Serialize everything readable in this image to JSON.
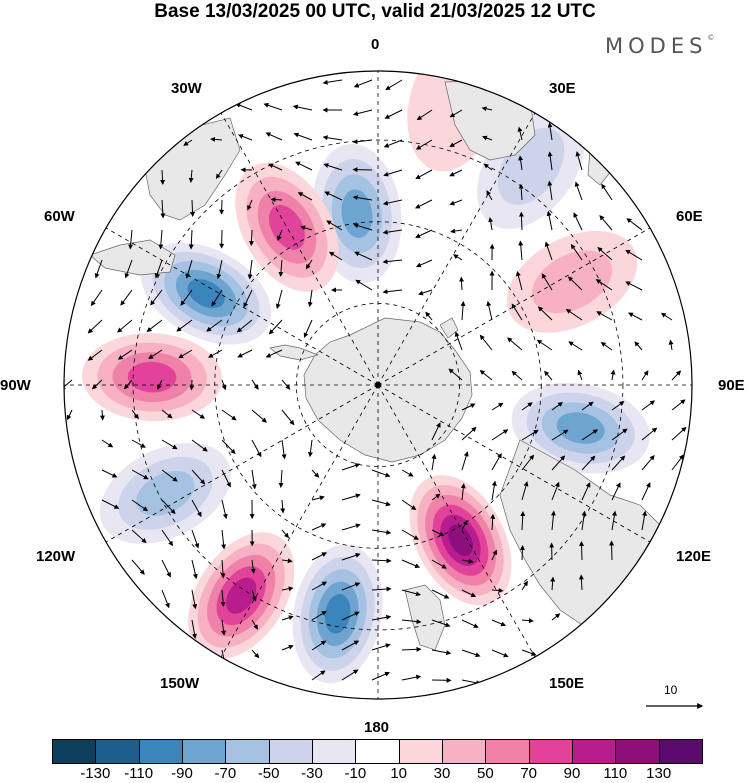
{
  "title": "Base 13/03/2025 00 UTC, valid 21/03/2025 12 UTC",
  "brand": "MODES",
  "brand_mark": "©",
  "map": {
    "projection": "south polar stereographic",
    "longitude_labels": {
      "top": "0",
      "bottom": "180",
      "left": "90W",
      "right": "90E",
      "upper_left_30": "30W",
      "upper_left_60": "60W",
      "lower_left_120": "120W",
      "lower_left_150": "150W",
      "upper_right_30": "30E",
      "upper_right_60": "60E",
      "lower_right_120": "120E",
      "lower_right_150": "150E"
    },
    "reference_vector_label": "10",
    "anomaly_cells": [
      {
        "lon_deg": -7,
        "r": 0.55,
        "value": -70
      },
      {
        "lon_deg": -30,
        "r": 0.58,
        "value": 70
      },
      {
        "lon_deg": -62,
        "r": 0.62,
        "value": -90
      },
      {
        "lon_deg": -88,
        "r": 0.72,
        "value": 70
      },
      {
        "lon_deg": -117,
        "r": 0.76,
        "value": -60
      },
      {
        "lon_deg": -147,
        "r": 0.8,
        "value": 90
      },
      {
        "lon_deg": -170,
        "r": 0.74,
        "value": -90
      },
      {
        "lon_deg": 152,
        "r": 0.56,
        "value": 110
      },
      {
        "lon_deg": 102,
        "r": 0.66,
        "value": -80
      },
      {
        "lon_deg": 62,
        "r": 0.7,
        "value": 40
      },
      {
        "lon_deg": 35,
        "r": 0.85,
        "value": -30
      },
      {
        "lon_deg": 15,
        "r": 0.93,
        "value": 20
      }
    ],
    "land_colour": "#e8e8e8",
    "grid_colour": "#000000"
  },
  "colorbar": {
    "tick_labels": [
      "-130",
      "-110",
      "-90",
      "-70",
      "-50",
      "-30",
      "-10",
      "10",
      "30",
      "50",
      "70",
      "90",
      "110",
      "130"
    ],
    "colors": [
      "#0b3f5c",
      "#1b5f8f",
      "#3b85bd",
      "#6ea5d0",
      "#a6c2e2",
      "#cdd3ea",
      "#e7e6f2",
      "#ffffff",
      "#fbd6db",
      "#f7b1c3",
      "#f082aa",
      "#e1439a",
      "#b91c8c",
      "#8c0f7c",
      "#5c0a6e"
    ]
  }
}
